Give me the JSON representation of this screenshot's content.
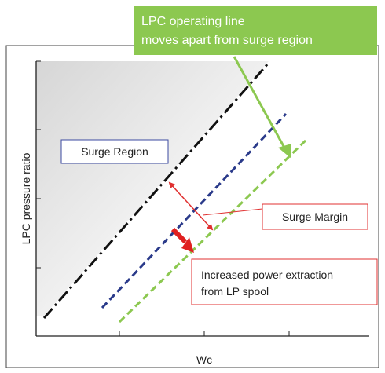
{
  "callout": {
    "line1": "LPC operating line",
    "line2": "moves apart from surge region",
    "fill": "#8cc850",
    "text_color": "#ffffff"
  },
  "axes": {
    "ylabel": "LPC pressure ratio",
    "xlabel": "Wc"
  },
  "labels": {
    "surge_region": "Surge Region",
    "surge_margin": "Surge Margin",
    "power_line1": "Increased power extraction",
    "power_line2": "from LP spool"
  },
  "colors": {
    "surge_line": "#111111",
    "original_operating_line": "#2a3a8a",
    "new_operating_line": "#8cc850",
    "margin_arrow": "#e03030",
    "shift_arrow": "#e02020",
    "surge_region_box_border": "#3b4aa0",
    "red_box_border": "#e03030"
  },
  "icons": {
    "margin_arrow": "double-headed-arrow",
    "shift_arrow": "thick-arrow",
    "callout_arrow": "arrow"
  }
}
